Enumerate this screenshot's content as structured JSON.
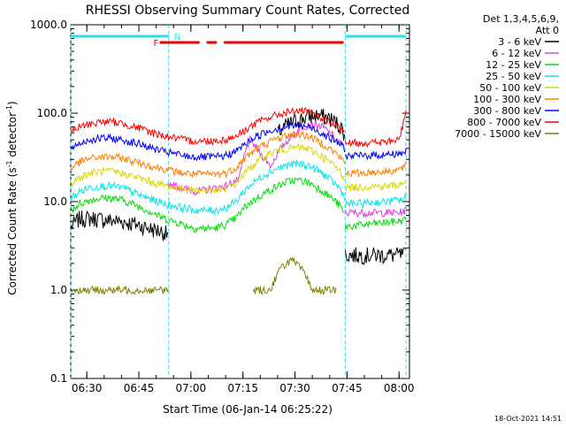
{
  "chart_data": {
    "type": "line",
    "title": "RHESSI Observing Summary Count Rates, Corrected",
    "xlabel": "Start Time (06-Jan-14 06:25:22)",
    "ylabel": "Corrected Count Rate (s⁻¹ detector⁻¹)",
    "ylabel_main": "Corrected Count Rate (s",
    "ylabel_sup1": "-1",
    "ylabel_mid": " detector",
    "ylabel_sup2": "-1",
    "ylabel_end": ")",
    "y_scale": "log",
    "ylim": [
      0.1,
      1000
    ],
    "xlim_minutes": [
      385.37,
      483
    ],
    "x_ticks": [
      {
        "label": "06:30",
        "minutes": 390
      },
      {
        "label": "06:45",
        "minutes": 405
      },
      {
        "label": "07:00",
        "minutes": 420
      },
      {
        "label": "07:15",
        "minutes": 435
      },
      {
        "label": "07:30",
        "minutes": 450
      },
      {
        "label": "07:45",
        "minutes": 465
      },
      {
        "label": "08:00",
        "minutes": 480
      }
    ],
    "y_ticks": [
      {
        "label": "0.1",
        "value": 0.1
      },
      {
        "label": "1.0",
        "value": 1
      },
      {
        "label": "10.0",
        "value": 10
      },
      {
        "label": "100.0",
        "value": 100
      },
      {
        "label": "1000.0",
        "value": 1000
      }
    ],
    "legend_header": [
      "Det 1,3,4,5,6,9,",
      "Att 0"
    ],
    "legend_placement": "right",
    "flags": {
      "night_label": "N",
      "flare_label": "F",
      "night_color": "#33dddd",
      "flare_color": "#ee0000",
      "night_intervals": [
        [
          385.37,
          413.6
        ],
        [
          464.5,
          482.0
        ]
      ],
      "flare_intervals": [
        [
          411.0,
          422.5
        ],
        [
          424.5,
          427.5
        ],
        [
          429.5,
          464.0
        ]
      ]
    },
    "night_boundaries_minutes": [
      385.37,
      413.6,
      464.5,
      482.0
    ],
    "series": [
      {
        "name": "3 - 6 keV",
        "color": "#000000",
        "segments": [
          {
            "x": [
              385.5,
              388,
              392,
              396,
              400,
              404,
              408,
              412,
              413.5
            ],
            "y": [
              5.2,
              6.5,
              6.5,
              6.2,
              6.0,
              5.6,
              5.0,
              4.6,
              4.2
            ]
          },
          {
            "x": [
              445,
              448,
              451,
              454,
              457,
              460,
              463,
              464.3
            ],
            "y": [
              60,
              75,
              85,
              92,
              95,
              88,
              72,
              60
            ]
          },
          {
            "x": [
              464.5,
              468,
              472,
              476,
              480,
              482
            ],
            "y": [
              2.5,
              2.5,
              2.5,
              2.5,
              2.5,
              2.5
            ]
          }
        ]
      },
      {
        "name": "6 - 12 keV",
        "color": "#e040e0",
        "segments": [
          {
            "x": [
              413.6,
              418,
              422,
              426,
              430,
              434,
              437,
              440,
              443,
              446,
              449,
              452,
              455,
              458,
              461,
              464.3
            ],
            "y": [
              16,
              14,
              13,
              14,
              15,
              18,
              50,
              35,
              25,
              40,
              55,
              70,
              75,
              70,
              55,
              40
            ]
          },
          {
            "x": [
              464.5,
              468,
              472,
              476,
              480,
              482
            ],
            "y": [
              7.5,
              7.5,
              7.5,
              7.5,
              7.5,
              8
            ]
          }
        ]
      },
      {
        "name": "12 - 25 keV",
        "color": "#00e000",
        "segments": [
          {
            "x": [
              385.5,
              388,
              391,
              394,
              397,
              400,
              403,
              406,
              409,
              412,
              415,
              418,
              421,
              424,
              427,
              430,
              433,
              436,
              439,
              442,
              445,
              448,
              451,
              454,
              457,
              460,
              463,
              464.3
            ],
            "y": [
              8,
              9.5,
              10.5,
              11,
              11,
              10.5,
              9.5,
              8.5,
              7.5,
              6.5,
              6,
              5.5,
              5,
              5,
              5,
              5.5,
              6.5,
              9,
              11,
              13,
              15,
              17,
              17.5,
              16.5,
              14,
              11.5,
              9,
              7
            ]
          },
          {
            "x": [
              464.5,
              468,
              472,
              476,
              480,
              482
            ],
            "y": [
              5.2,
              5.4,
              5.6,
              5.8,
              6,
              6.3
            ]
          }
        ]
      },
      {
        "name": "25 - 50 keV",
        "color": "#00e8e8",
        "segments": [
          {
            "x": [
              385.5,
              388,
              391,
              394,
              397,
              400,
              403,
              406,
              409,
              412,
              415,
              418,
              421,
              424,
              427,
              430,
              433,
              436,
              439,
              442,
              445,
              448,
              451,
              454,
              457,
              460,
              463,
              464.3
            ],
            "y": [
              11,
              13,
              14.5,
              15,
              15,
              14.5,
              13,
              11.5,
              10.5,
              9.5,
              9,
              8.5,
              8,
              8,
              8,
              8.5,
              10,
              14,
              17.5,
              21,
              24,
              26,
              27,
              25.5,
              22,
              18,
              14,
              11
            ]
          },
          {
            "x": [
              464.5,
              468,
              472,
              476,
              480,
              482
            ],
            "y": [
              9.5,
              9.5,
              9.8,
              10,
              10.5,
              11
            ]
          }
        ]
      },
      {
        "name": "50 - 100 keV",
        "color": "#d8d800",
        "segments": [
          {
            "x": [
              385.5,
              388,
              391,
              394,
              397,
              400,
              403,
              406,
              409,
              412,
              415,
              418,
              421,
              424,
              427,
              430,
              433,
              436,
              439,
              442,
              445,
              448,
              451,
              454,
              457,
              460,
              463,
              464.3
            ],
            "y": [
              16,
              19,
              21,
              22,
              22,
              21,
              19.5,
              18,
              16.5,
              15.5,
              14.5,
              14,
              13.5,
              13.5,
              13.5,
              14,
              16,
              22,
              28,
              34,
              38,
              40,
              41,
              39,
              34,
              28,
              22,
              18
            ]
          },
          {
            "x": [
              464.5,
              468,
              472,
              476,
              480,
              482
            ],
            "y": [
              14.5,
              14.5,
              15,
              15,
              15.5,
              16.5
            ]
          }
        ]
      },
      {
        "name": "100 - 300 keV",
        "color": "#ff8000",
        "segments": [
          {
            "x": [
              385.5,
              388,
              391,
              394,
              397,
              400,
              403,
              406,
              409,
              412,
              415,
              418,
              421,
              424,
              427,
              430,
              433,
              436,
              439,
              442,
              445,
              448,
              451,
              454,
              457,
              460,
              463,
              464.3
            ],
            "y": [
              24,
              28,
              31,
              32,
              32,
              31,
              29,
              27,
              25,
              23.5,
              22,
              21,
              20.5,
              20.5,
              20.5,
              21,
              24,
              32,
              40,
              46,
              52,
              56,
              58,
              55,
              48,
              40,
              32,
              27
            ]
          },
          {
            "x": [
              464.5,
              468,
              472,
              476,
              480,
              482
            ],
            "y": [
              21,
              21,
              21.5,
              22,
              23,
              25
            ]
          }
        ]
      },
      {
        "name": "300 - 800 keV",
        "color": "#0000ff",
        "segments": [
          {
            "x": [
              385.5,
              388,
              391,
              394,
              397,
              400,
              403,
              406,
              409,
              412,
              415,
              418,
              421,
              424,
              427,
              430,
              433,
              436,
              439,
              442,
              445,
              448,
              451,
              454,
              457,
              460,
              463,
              464.3
            ],
            "y": [
              41,
              46,
              50,
              52,
              52,
              50,
              47,
              44,
              40,
              37,
              35,
              33,
              32,
              32,
              32,
              33,
              37,
              46,
              55,
              62,
              67,
              71,
              73,
              70,
              62,
              53,
              45,
              40
            ]
          },
          {
            "x": [
              464.5,
              468,
              472,
              476,
              480,
              482
            ],
            "y": [
              33,
              33,
              33.5,
              34,
              35,
              37
            ]
          }
        ]
      },
      {
        "name": "800 - 7000 keV",
        "color": "#ff0000",
        "segments": [
          {
            "x": [
              385.5,
              388,
              391,
              394,
              397,
              400,
              403,
              406,
              409,
              412,
              415,
              418,
              421,
              424,
              427,
              430,
              433,
              436,
              439,
              442,
              445,
              448,
              451,
              454,
              457,
              460,
              463,
              464.3
            ],
            "y": [
              62,
              70,
              76,
              80,
              80,
              77,
              72,
              66,
              60,
              56,
              53,
              50,
              48.5,
              48.5,
              49,
              50,
              55,
              66,
              78,
              88,
              96,
              103,
              107,
              103,
              92,
              79,
              66,
              58
            ]
          },
          {
            "x": [
              464.5,
              468,
              472,
              476,
              480,
              481,
              482
            ],
            "y": [
              46,
              46,
              46.5,
              47,
              50,
              70,
              110
            ]
          }
        ]
      },
      {
        "name": "7000 - 15000 keV",
        "color": "#808000",
        "segments": [
          {
            "x": [
              385.5,
              391,
              397,
              403,
              409,
              413.5
            ],
            "y": [
              1.0,
              1.0,
              1.0,
              1.0,
              1.0,
              1.0
            ]
          },
          {
            "x": [
              438,
              443,
              446,
              449,
              452,
              455,
              458,
              462
            ],
            "y": [
              1.0,
              1.0,
              1.8,
              2.2,
              1.7,
              1.0,
              1.0,
              1.0
            ]
          }
        ]
      }
    ]
  },
  "footer": {
    "timestamp": "18-Oct-2021 14:51"
  }
}
